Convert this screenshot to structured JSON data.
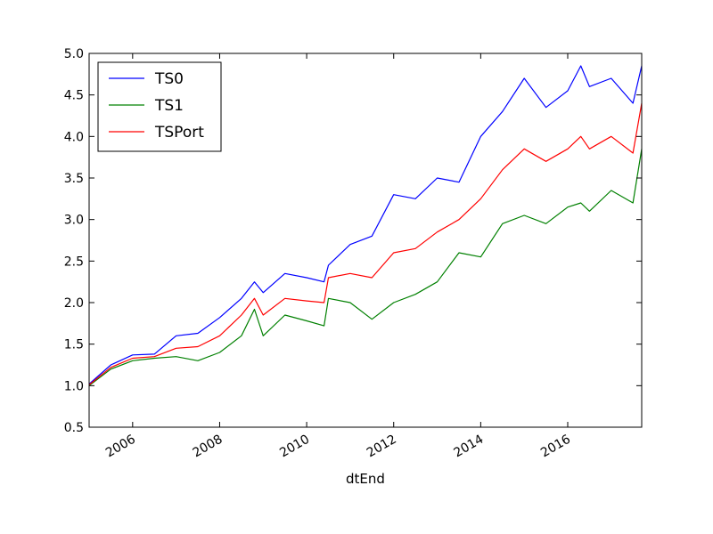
{
  "chart_data": {
    "type": "line",
    "title": "",
    "xlabel": "dtEnd",
    "ylabel": "",
    "x": [
      2005.0,
      2005.5,
      2006.0,
      2006.5,
      2007.0,
      2007.5,
      2008.0,
      2008.5,
      2008.8,
      2009.0,
      2009.5,
      2010.0,
      2010.4,
      2010.5,
      2011.0,
      2011.5,
      2012.0,
      2012.5,
      2013.0,
      2013.5,
      2014.0,
      2014.5,
      2015.0,
      2015.5,
      2016.0,
      2016.3,
      2016.5,
      2017.0,
      2017.5,
      2017.7
    ],
    "series": [
      {
        "name": "TS0",
        "color": "#0000ff",
        "values": [
          1.02,
          1.25,
          1.37,
          1.38,
          1.6,
          1.63,
          1.82,
          2.05,
          2.25,
          2.12,
          2.35,
          2.3,
          2.25,
          2.45,
          2.7,
          2.8,
          3.3,
          3.25,
          3.5,
          3.45,
          4.0,
          4.3,
          4.7,
          4.35,
          4.55,
          4.85,
          4.6,
          4.7,
          4.4,
          4.85
        ]
      },
      {
        "name": "TS1",
        "color": "#008000",
        "values": [
          1.0,
          1.2,
          1.3,
          1.33,
          1.35,
          1.3,
          1.4,
          1.6,
          1.92,
          1.6,
          1.85,
          1.78,
          1.72,
          2.05,
          2.0,
          1.8,
          2.0,
          2.1,
          2.25,
          2.6,
          2.55,
          2.95,
          3.05,
          2.95,
          3.15,
          3.2,
          3.1,
          3.35,
          3.2,
          3.85
        ]
      },
      {
        "name": "TSPort",
        "color": "#ff0000",
        "values": [
          1.01,
          1.22,
          1.33,
          1.35,
          1.45,
          1.47,
          1.6,
          1.85,
          2.05,
          1.85,
          2.05,
          2.02,
          2.0,
          2.3,
          2.35,
          2.3,
          2.6,
          2.65,
          2.85,
          3.0,
          3.25,
          3.6,
          3.85,
          3.7,
          3.85,
          4.0,
          3.85,
          4.0,
          3.8,
          4.4
        ]
      }
    ],
    "xlim": [
      2005.0,
      2017.7
    ],
    "ylim": [
      0.5,
      5.0
    ],
    "x_ticks": [
      2006,
      2008,
      2010,
      2012,
      2014,
      2016
    ],
    "x_tick_labels": [
      "2006",
      "2008",
      "2010",
      "2012",
      "2014",
      "2016"
    ],
    "y_ticks": [
      0.5,
      1.0,
      1.5,
      2.0,
      2.5,
      3.0,
      3.5,
      4.0,
      4.5,
      5.0
    ],
    "y_tick_labels": [
      "0.5",
      "1.0",
      "1.5",
      "2.0",
      "2.5",
      "3.0",
      "3.5",
      "4.0",
      "4.5",
      "5.0"
    ],
    "legend_position": "top-left",
    "grid": false
  }
}
